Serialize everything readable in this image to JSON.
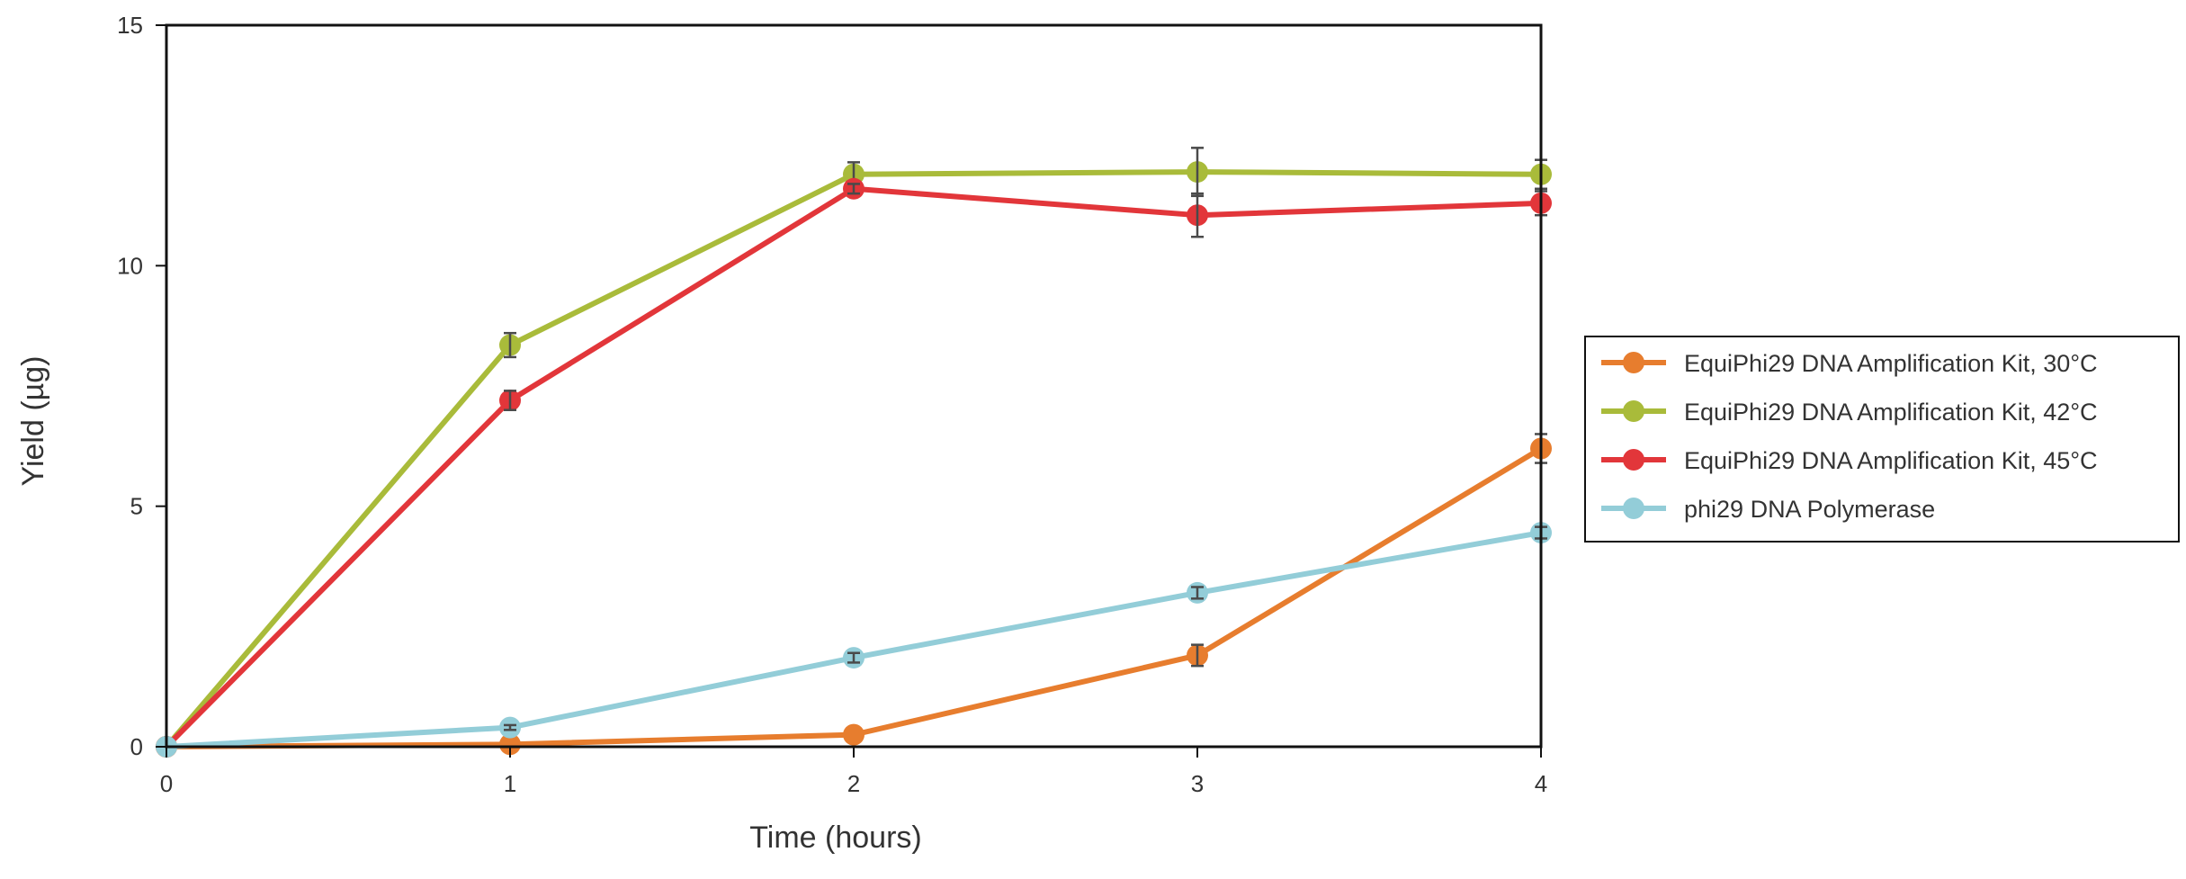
{
  "chart_data": {
    "type": "line",
    "title": "",
    "xlabel": "Time (hours)",
    "ylabel": "Yield (µg)",
    "x": [
      0,
      1,
      2,
      3,
      4
    ],
    "x_ticks": [
      "0",
      "1",
      "2",
      "3",
      "4"
    ],
    "y_ticks": [
      "0",
      "5",
      "10",
      "15"
    ],
    "xlim": [
      0,
      4
    ],
    "ylim": [
      0,
      15
    ],
    "grid": false,
    "legend_position": "right",
    "series": [
      {
        "name": "EquiPhi29 DNA Amplification Kit, 30°C",
        "color": "#e77d2e",
        "values": [
          0,
          0.05,
          0.25,
          1.9,
          6.2
        ],
        "errors": [
          0,
          0,
          0,
          0.22,
          0.3
        ]
      },
      {
        "name": "EquiPhi29 DNA Amplification Kit, 42°C",
        "color": "#a9bb3a",
        "values": [
          0,
          8.35,
          11.9,
          11.95,
          11.9
        ],
        "errors": [
          0,
          0.25,
          0.25,
          0.5,
          0.3
        ]
      },
      {
        "name": "EquiPhi29 DNA Amplification Kit, 45°C",
        "color": "#e2363a",
        "values": [
          0,
          7.2,
          11.6,
          11.05,
          11.3
        ],
        "errors": [
          0,
          0.2,
          0.1,
          0.45,
          0.25
        ]
      },
      {
        "name": "phi29 DNA Polymerase",
        "color": "#93cdd8",
        "values": [
          0,
          0.4,
          1.85,
          3.2,
          4.45
        ],
        "errors": [
          0,
          0.05,
          0.1,
          0.12,
          0.12
        ]
      }
    ]
  }
}
